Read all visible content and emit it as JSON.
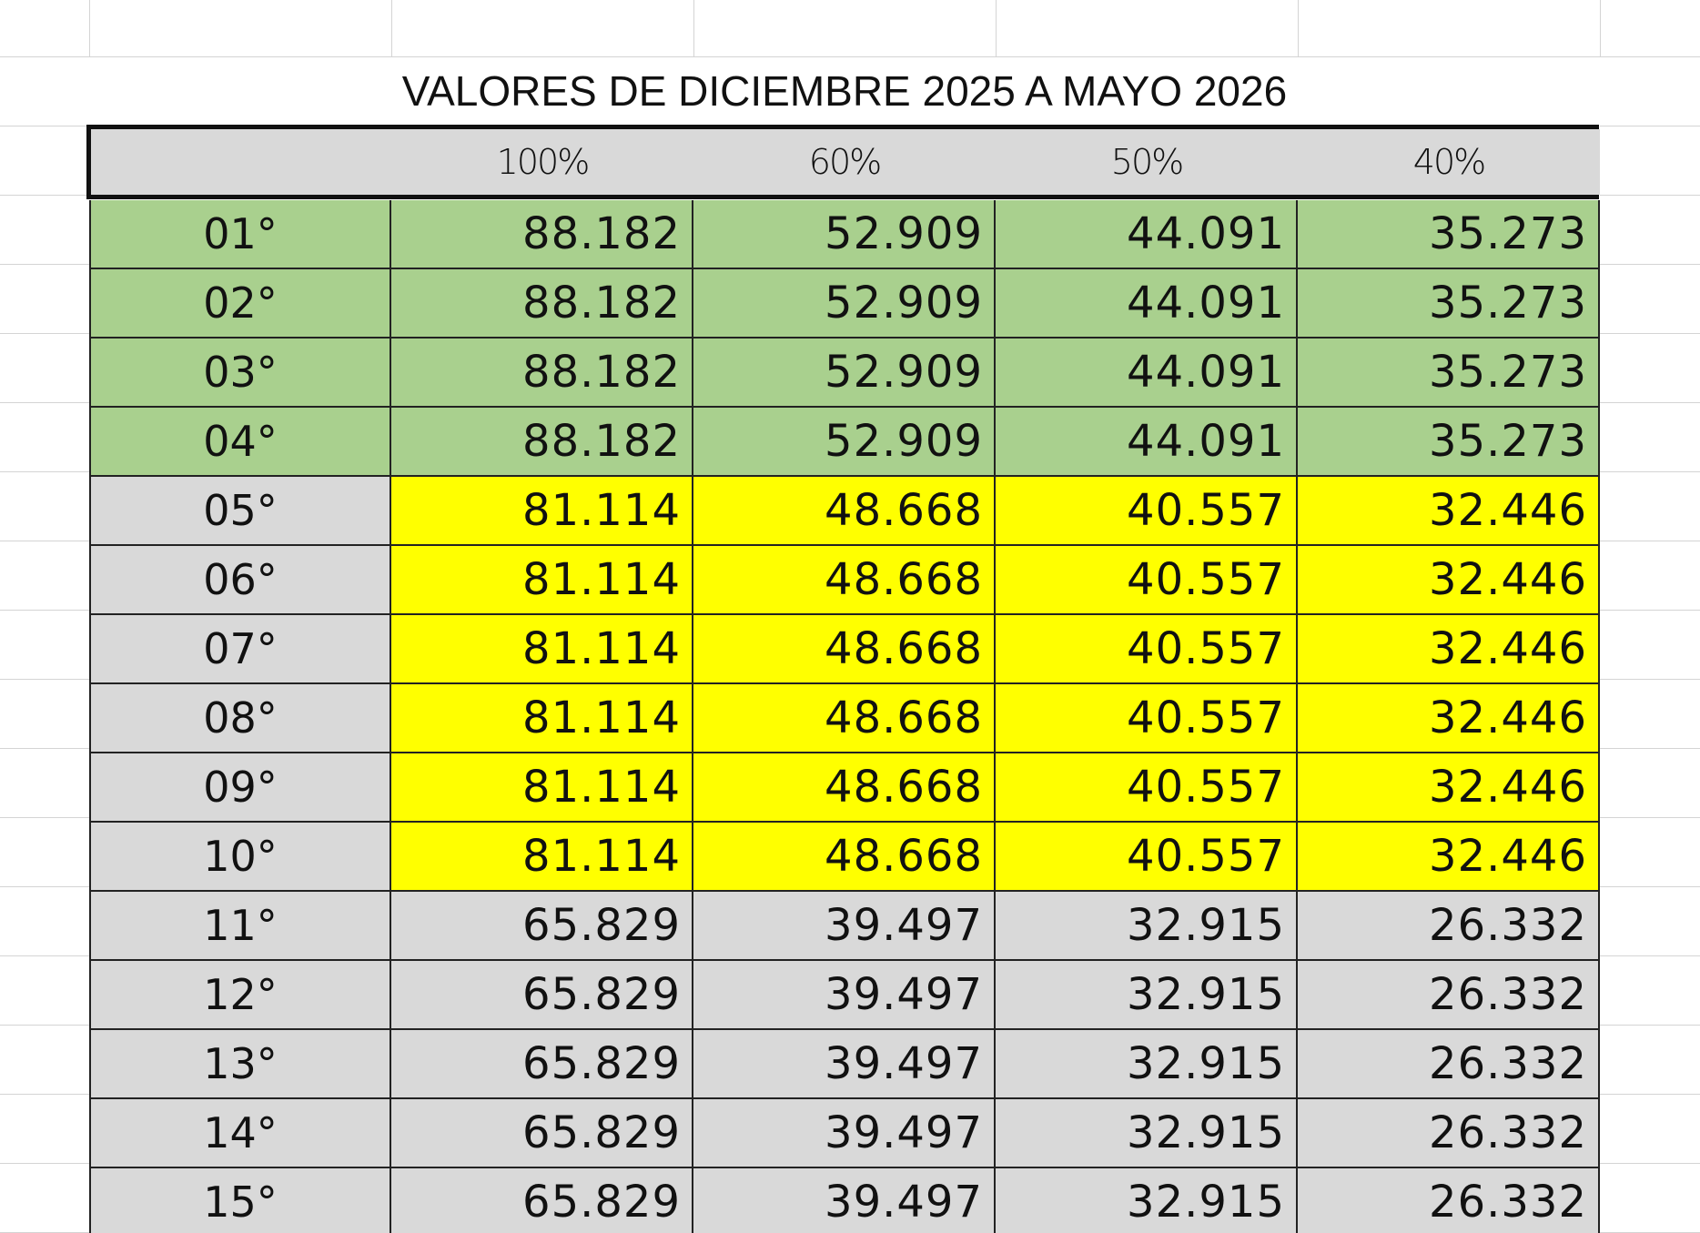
{
  "title": "VALORES DE DICIEMBRE 2025 A MAYO 2026",
  "table": {
    "headers": [
      "100%",
      "60%",
      "50%",
      "40%"
    ],
    "rows": [
      [
        "01°",
        "88.182",
        "52.909",
        "44.091",
        "35.273"
      ],
      [
        "02°",
        "88.182",
        "52.909",
        "44.091",
        "35.273"
      ],
      [
        "03°",
        "88.182",
        "52.909",
        "44.091",
        "35.273"
      ],
      [
        "04°",
        "88.182",
        "52.909",
        "44.091",
        "35.273"
      ],
      [
        "05°",
        "81.114",
        "48.668",
        "40.557",
        "32.446"
      ],
      [
        "06°",
        "81.114",
        "48.668",
        "40.557",
        "32.446"
      ],
      [
        "07°",
        "81.114",
        "48.668",
        "40.557",
        "32.446"
      ],
      [
        "08°",
        "81.114",
        "48.668",
        "40.557",
        "32.446"
      ],
      [
        "09°",
        "81.114",
        "48.668",
        "40.557",
        "32.446"
      ],
      [
        "10°",
        "81.114",
        "48.668",
        "40.557",
        "32.446"
      ],
      [
        "11°",
        "65.829",
        "39.497",
        "32.915",
        "26.332"
      ],
      [
        "12°",
        "65.829",
        "39.497",
        "32.915",
        "26.332"
      ],
      [
        "13°",
        "65.829",
        "39.497",
        "32.915",
        "26.332"
      ],
      [
        "14°",
        "65.829",
        "39.497",
        "32.915",
        "26.332"
      ],
      [
        "15°",
        "65.829",
        "39.497",
        "32.915",
        "26.332"
      ]
    ]
  }
}
